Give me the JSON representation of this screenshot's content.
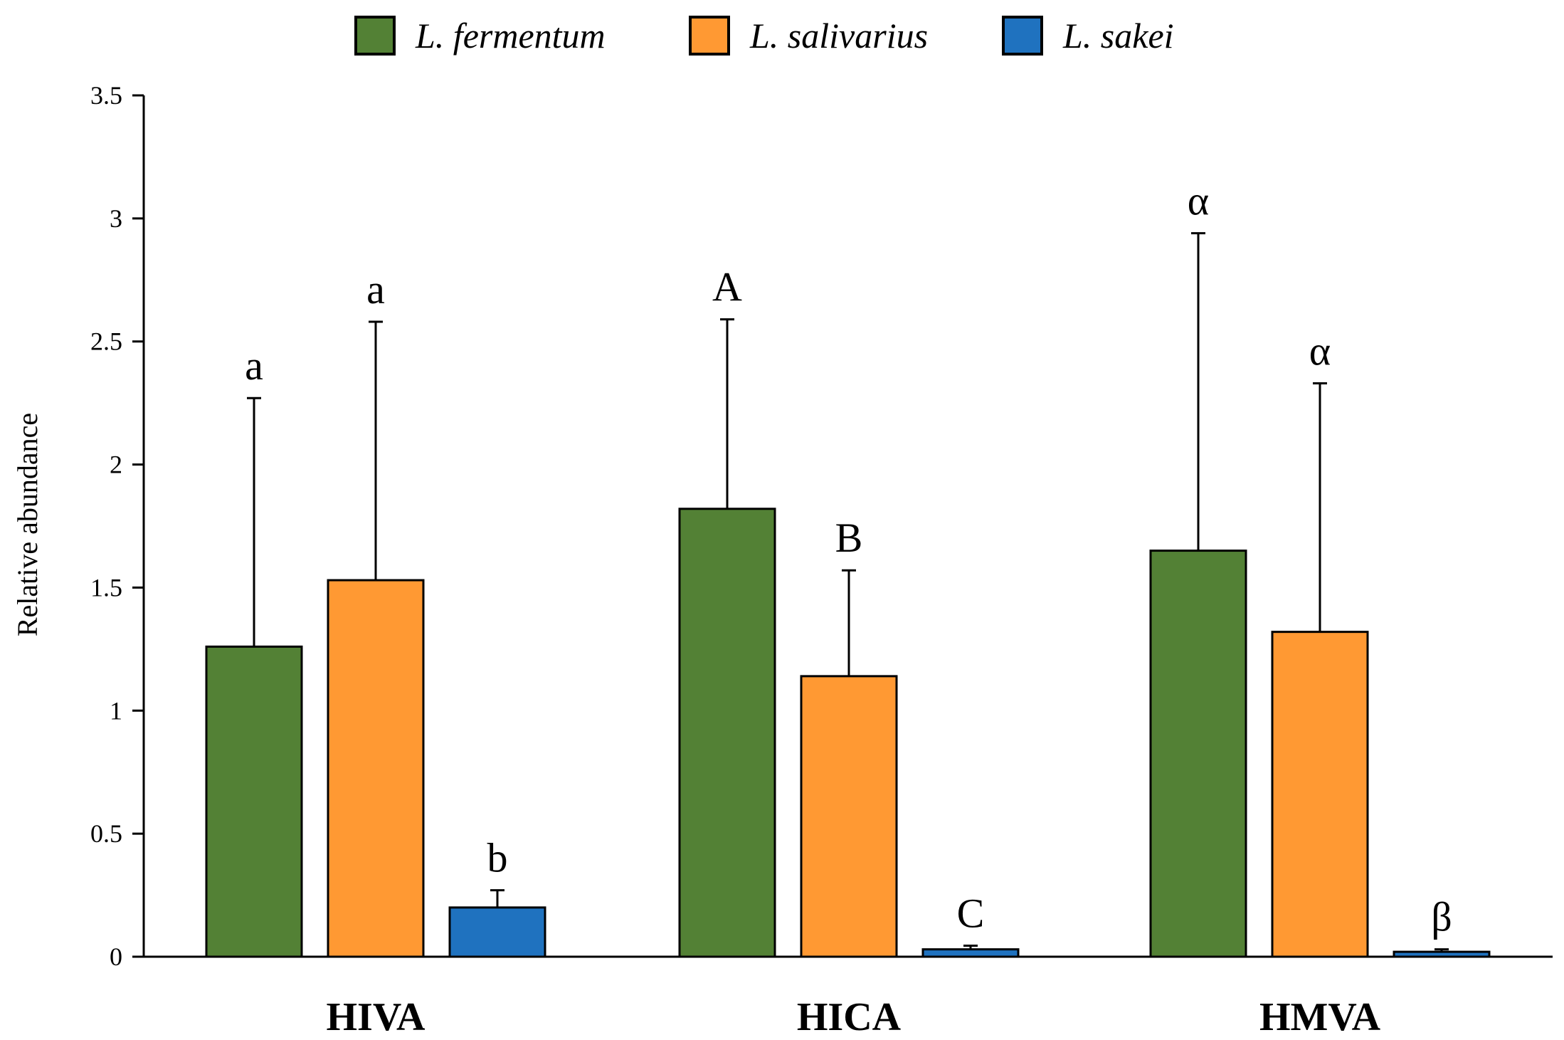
{
  "chart_data": {
    "type": "bar",
    "title": "",
    "xlabel": "",
    "ylabel": "Relative abundance",
    "ylim": [
      0,
      3.5
    ],
    "yticks": [
      0,
      0.5,
      1,
      1.5,
      2,
      2.5,
      3,
      3.5
    ],
    "ytick_labels": [
      "0",
      "0.5",
      "1",
      "1.5",
      "2",
      "2.5",
      "3",
      "3.5"
    ],
    "grid": false,
    "legend_position": "top-center",
    "categories": [
      "HIVA",
      "HICA",
      "HMVA"
    ],
    "series": [
      {
        "name": "L. fermentum",
        "color": "#538135",
        "values": [
          1.26,
          1.82,
          1.65
        ],
        "error": [
          1.01,
          0.77,
          1.29
        ],
        "significance": [
          "a",
          "A",
          "α"
        ]
      },
      {
        "name": "L. salivarius",
        "color": "#FF9933",
        "values": [
          1.53,
          1.14,
          1.32
        ],
        "error": [
          1.05,
          0.43,
          1.01
        ],
        "significance": [
          "a",
          "B",
          "α"
        ]
      },
      {
        "name": "L. sakei",
        "color": "#1F72BF",
        "values": [
          0.2,
          0.03,
          0.02
        ],
        "error": [
          0.07,
          0.015,
          0.01
        ],
        "significance": [
          "b",
          "C",
          "β"
        ]
      }
    ]
  }
}
